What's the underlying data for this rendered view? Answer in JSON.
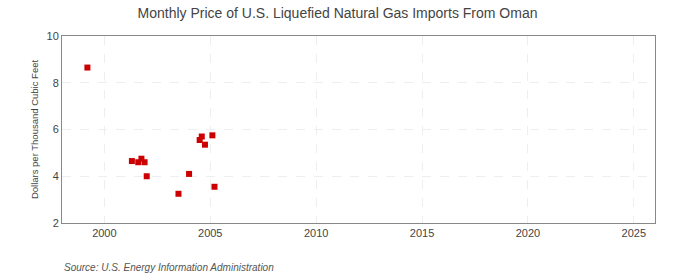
{
  "chart_data": {
    "type": "scatter",
    "title": "Monthly Price of U.S. Liquefied Natural Gas Imports From Oman",
    "ylabel": "Dollars per Thousand Cubic Feet",
    "annotations": [
      "Source: U.S. Energy Information Administration"
    ],
    "x": [
      1999.2,
      2001.3,
      2001.6,
      2001.75,
      2001.9,
      2002.0,
      2003.5,
      2004.0,
      2004.5,
      2004.6,
      2004.75,
      2005.1,
      2005.2
    ],
    "values": [
      8.65,
      4.65,
      4.6,
      4.75,
      4.6,
      4.0,
      3.25,
      4.1,
      5.55,
      5.7,
      5.35,
      5.75,
      3.55
    ],
    "color": "#cc0000",
    "marker": "square",
    "xlim": [
      1998,
      2026
    ],
    "ylim": [
      2,
      10
    ],
    "xticks": [
      2000,
      2005,
      2010,
      2015,
      2020,
      2025
    ],
    "yticks": [
      2,
      4,
      6,
      8,
      10
    ],
    "grid": true
  }
}
